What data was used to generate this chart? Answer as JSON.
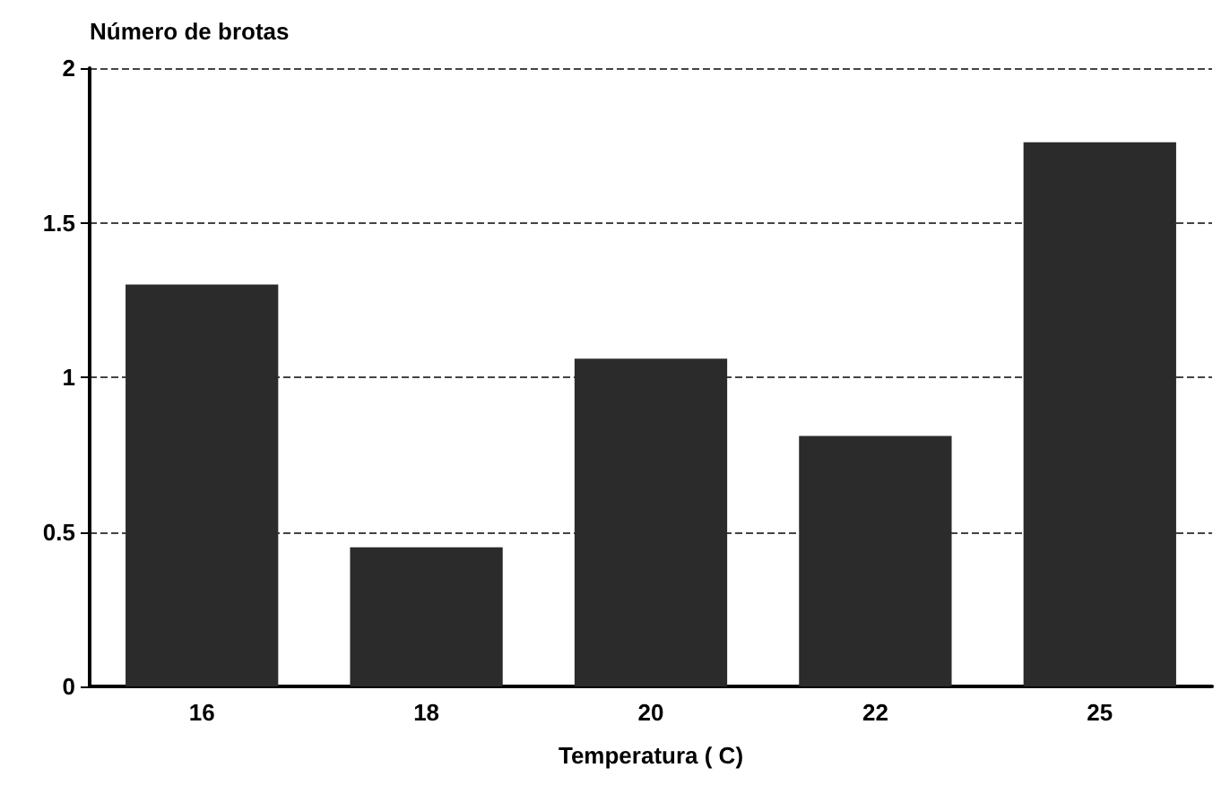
{
  "chart_data": {
    "type": "bar",
    "ylabel": "Número de brotas",
    "xlabel": "Temperatura ( C)",
    "categories": [
      "16",
      "18",
      "20",
      "22",
      "25"
    ],
    "values": [
      1.3,
      0.45,
      1.06,
      0.81,
      1.76
    ],
    "color": "#2b2b2b",
    "ylim": [
      0,
      2
    ],
    "yticks": [
      0,
      0.5,
      1,
      1.5,
      2
    ],
    "grid": "y",
    "line_style": "dashed"
  }
}
